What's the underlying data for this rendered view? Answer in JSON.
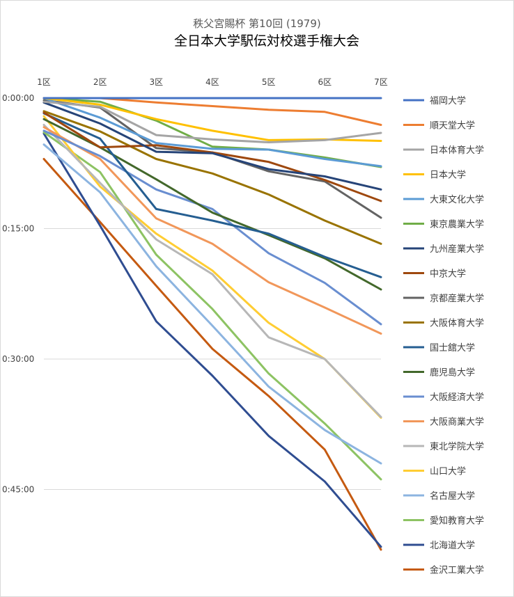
{
  "chart_data": {
    "type": "line",
    "title": "秩父宮賜杯 第10回 (1979)",
    "subtitle": "全日本大学駅伝対校選手権大会",
    "x": [
      "1区",
      "2区",
      "3区",
      "4区",
      "5区",
      "6区",
      "7区"
    ],
    "y_ticks": [
      "0:00:00",
      "0:15:00",
      "0:30:00",
      "0:45:00"
    ],
    "y_tick_seconds": [
      0,
      900,
      1800,
      2700
    ],
    "ylim_seconds": [
      0,
      3150
    ],
    "y_inverted": true,
    "grid": true,
    "legend_position": "right",
    "series": [
      {
        "name": "福岡大学",
        "color": "#4472C4",
        "values": [
          0,
          0,
          0,
          0,
          0,
          0,
          0
        ]
      },
      {
        "name": "順天堂大学",
        "color": "#ED7D31",
        "values": [
          0,
          0,
          30,
          55,
          80,
          95,
          185
        ]
      },
      {
        "name": "日本体育大学",
        "color": "#A5A5A5",
        "values": [
          25,
          60,
          255,
          285,
          305,
          290,
          240
        ]
      },
      {
        "name": "日本大学",
        "color": "#FFC000",
        "values": [
          0,
          45,
          145,
          225,
          290,
          285,
          295
        ]
      },
      {
        "name": "大東文化大学",
        "color": "#5B9BD5",
        "values": [
          0,
          135,
          310,
          350,
          355,
          420,
          470
        ]
      },
      {
        "name": "東京農業大学",
        "color": "#70AD47",
        "values": [
          0,
          25,
          155,
          335,
          355,
          410,
          475
        ]
      },
      {
        "name": "九州産業大学",
        "color": "#264478",
        "values": [
          30,
          175,
          370,
          380,
          490,
          540,
          630
        ]
      },
      {
        "name": "中京大学",
        "color": "#9E480E",
        "values": [
          100,
          340,
          325,
          375,
          440,
          565,
          710
        ]
      },
      {
        "name": "京都産業大学",
        "color": "#636363",
        "values": [
          15,
          65,
          345,
          375,
          505,
          575,
          825
        ]
      },
      {
        "name": "大阪体育大学",
        "color": "#997300",
        "values": [
          90,
          230,
          420,
          520,
          665,
          845,
          1005
        ]
      },
      {
        "name": "国士舘大学",
        "color": "#255E91",
        "values": [
          105,
          280,
          765,
          845,
          935,
          1095,
          1235
        ]
      },
      {
        "name": "鹿児島大学",
        "color": "#43682B",
        "values": [
          145,
          340,
          560,
          790,
          945,
          1105,
          1320
        ]
      },
      {
        "name": "大阪経済大学",
        "color": "#698ED0",
        "values": [
          225,
          400,
          630,
          765,
          1070,
          1275,
          1560
        ]
      },
      {
        "name": "大阪商業大学",
        "color": "#F1975A",
        "values": [
          200,
          420,
          830,
          1005,
          1270,
          1445,
          1625
        ]
      },
      {
        "name": "東北学院大学",
        "color": "#B7B7B7",
        "values": [
          185,
          585,
          975,
          1215,
          1650,
          1800,
          2200
        ]
      },
      {
        "name": "山口大学",
        "color": "#FFCD33",
        "values": [
          125,
          610,
          935,
          1190,
          1550,
          1800,
          2205
        ]
      },
      {
        "name": "名古屋大学",
        "color": "#8CB4E0",
        "values": [
          320,
          650,
          1160,
          1570,
          1990,
          2290,
          2520
        ]
      },
      {
        "name": "愛知教育大学",
        "color": "#8DC363",
        "values": [
          235,
          510,
          1080,
          1455,
          1900,
          2245,
          2630
        ]
      },
      {
        "name": "北海道大学",
        "color": "#2F4D91",
        "values": [
          245,
          880,
          1540,
          1915,
          2330,
          2645,
          3095
        ]
      },
      {
        "name": "金沢工業大学",
        "color": "#C55A11",
        "values": [
          420,
          855,
          1295,
          1730,
          2055,
          2425,
          3115
        ]
      }
    ]
  }
}
